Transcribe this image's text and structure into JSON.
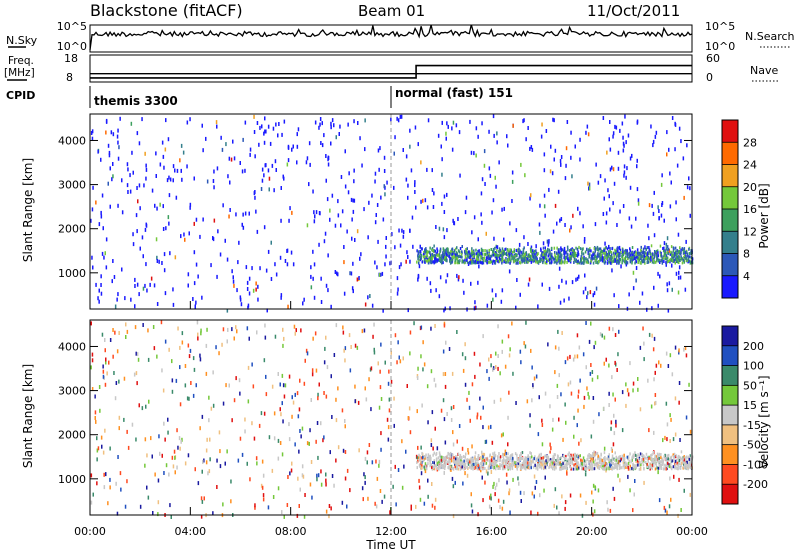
{
  "header": {
    "title": "Blackstone (fitACF)",
    "beam": "Beam 01",
    "date": "11/Oct/2011"
  },
  "sky_panel": {
    "left_label": "N.Sky",
    "right_label": "N.Search",
    "left_ticks": [
      "10^5",
      "10^0"
    ],
    "right_ticks": [
      "10^5",
      "10^0"
    ]
  },
  "freq_panel": {
    "left_label_1": "Freq.",
    "left_label_2": "[MHz]",
    "right_label": "Nave",
    "left_ticks": [
      "18",
      "8"
    ],
    "right_ticks": [
      "60",
      "0"
    ],
    "freq_mhz": [
      {
        "t": 0,
        "v": 10.3
      },
      {
        "t": 24,
        "v": 10.3
      }
    ],
    "nave": [
      {
        "t": 0,
        "v": 10
      },
      {
        "t": 13,
        "v": 10
      },
      {
        "t": 13,
        "v": 40
      },
      {
        "t": 24,
        "v": 40
      }
    ]
  },
  "cpid_panel": {
    "label": "CPID",
    "segments": [
      {
        "name": "themis 3300",
        "start": 0,
        "end": 12
      },
      {
        "name": "normal (fast) 151",
        "start": 12,
        "end": 24
      }
    ]
  },
  "time_axis": {
    "label": "Time UT",
    "ticks": [
      "00:00",
      "04:00",
      "08:00",
      "12:00",
      "16:00",
      "20:00",
      "00:00"
    ]
  },
  "chart_data": [
    {
      "type": "heatmap",
      "name": "power",
      "ylabel": "Slant Range [km]",
      "xlim": [
        0,
        24
      ],
      "ylim": [
        180,
        4600
      ],
      "yticks": [
        "1000",
        "2000",
        "3000",
        "4000"
      ],
      "colorbar": {
        "label": "Power [dB]",
        "ticks": [
          "4",
          "8",
          "12",
          "16",
          "20",
          "24",
          "28"
        ],
        "colors": [
          "#1a1aff",
          "#2c58b8",
          "#347f8c",
          "#3da05e",
          "#74c83a",
          "#f0a020",
          "#ff6a00",
          "#e01010"
        ]
      },
      "band": {
        "start": 13,
        "end": 24,
        "range_low": 1250,
        "range_high": 1650
      }
    },
    {
      "type": "heatmap",
      "name": "velocity",
      "ylabel": "Slant Range [km]",
      "xlim": [
        0,
        24
      ],
      "ylim": [
        180,
        4600
      ],
      "yticks": [
        "1000",
        "2000",
        "3000",
        "4000"
      ],
      "colorbar": {
        "label": "Velocity [m s⁻¹]",
        "ticks": [
          "-200",
          "-100",
          "-50",
          "-15",
          "15",
          "50",
          "100",
          "200"
        ],
        "colors": [
          "#e01010",
          "#ff4a20",
          "#ff9020",
          "#f0c080",
          "#c8c8c8",
          "#74c83a",
          "#3a8a6a",
          "#2050c0",
          "#1a1aa0"
        ]
      },
      "band": {
        "start": 13,
        "end": 24,
        "range_low": 1250,
        "range_high": 1650
      }
    }
  ]
}
